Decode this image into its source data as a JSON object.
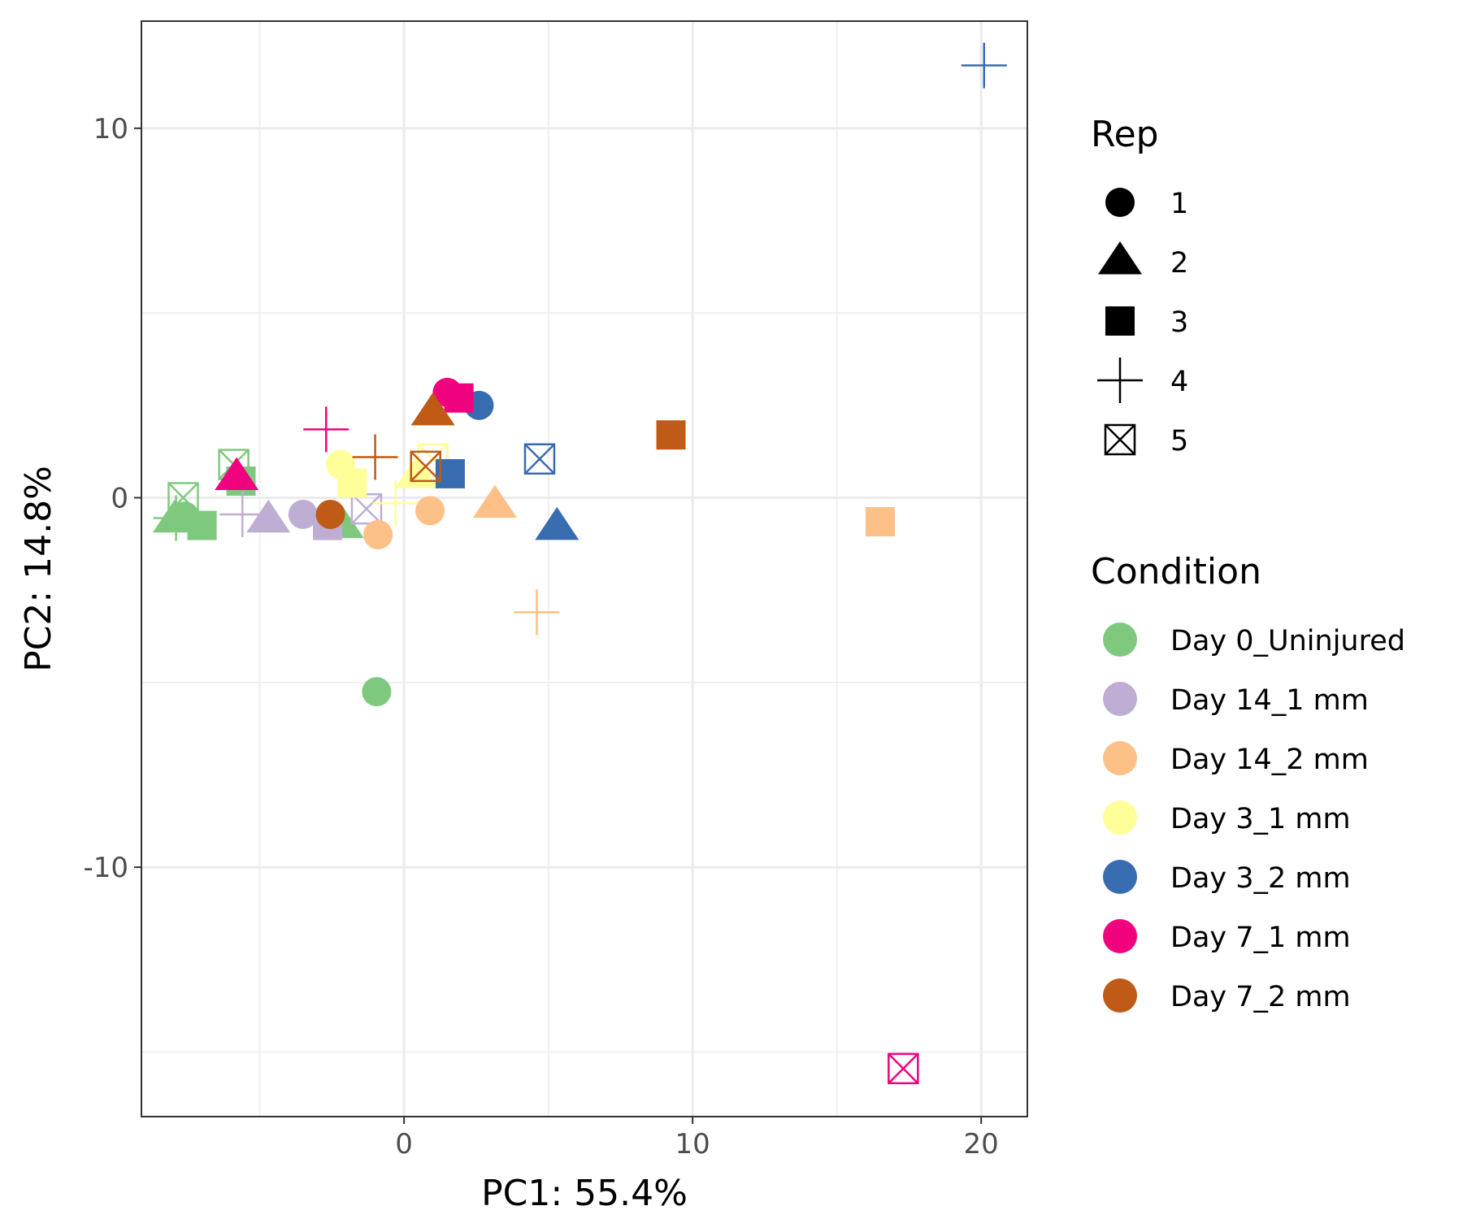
{
  "chart_data": {
    "type": "scatter",
    "title": "",
    "xlabel": "PC1: 55.4%",
    "ylabel": "PC2: 14.8%",
    "xlim": [
      -9.1,
      21.6
    ],
    "ylim": [
      -16.75,
      12.9
    ],
    "x_ticks": [
      0,
      10,
      20
    ],
    "x_tick_labels": [
      "0",
      "10",
      "20"
    ],
    "y_ticks": [
      -10,
      0,
      10
    ],
    "y_tick_labels": [
      "-10",
      "0",
      "10"
    ],
    "grid": true,
    "legend_position": "right",
    "rep_legend": {
      "title": "Rep",
      "items": [
        {
          "label": "1",
          "shape": "circle"
        },
        {
          "label": "2",
          "shape": "triangle"
        },
        {
          "label": "3",
          "shape": "square"
        },
        {
          "label": "4",
          "shape": "plus"
        },
        {
          "label": "5",
          "shape": "boxed-x"
        }
      ]
    },
    "condition_legend": {
      "title": "Condition",
      "items": [
        {
          "label": "Day 0_Uninjured",
          "color": "#7fc97f"
        },
        {
          "label": "Day 14_1 mm",
          "color": "#beaed4"
        },
        {
          "label": "Day 14_2 mm",
          "color": "#fdc086"
        },
        {
          "label": "Day 3_1 mm",
          "color": "#ffff99"
        },
        {
          "label": "Day 3_2 mm",
          "color": "#386cb0"
        },
        {
          "label": "Day 7_1 mm",
          "color": "#f0027f"
        },
        {
          "label": "Day 7_2 mm",
          "color": "#bf5b17"
        }
      ]
    },
    "points": [
      {
        "condition": "Day 0_Uninjured",
        "rep": 1,
        "x": -0.95,
        "y": -5.25
      },
      {
        "condition": "Day 0_Uninjured",
        "rep": 2,
        "x": -2.15,
        "y": -0.75
      },
      {
        "condition": "Day 0_Uninjured",
        "rep": 3,
        "x": -7.0,
        "y": -0.75
      },
      {
        "condition": "Day 0_Uninjured",
        "rep": 4,
        "x": -7.9,
        "y": -0.55
      },
      {
        "condition": "Day 0_Uninjured",
        "rep": 5,
        "x": -5.9,
        "y": 0.9
      },
      {
        "condition": "Day 0_Uninjured",
        "rep": 1,
        "x": -7.6,
        "y": -0.5
      },
      {
        "condition": "Day 0_Uninjured",
        "rep": 2,
        "x": -7.95,
        "y": -0.6
      },
      {
        "condition": "Day 0_Uninjured",
        "rep": 3,
        "x": -5.65,
        "y": 0.45
      },
      {
        "condition": "Day 0_Uninjured",
        "rep": 5,
        "x": -7.65,
        "y": 0.0
      },
      {
        "condition": "Day 14_1 mm",
        "rep": 1,
        "x": -3.5,
        "y": -0.45
      },
      {
        "condition": "Day 14_1 mm",
        "rep": 2,
        "x": -4.7,
        "y": -0.6
      },
      {
        "condition": "Day 14_1 mm",
        "rep": 3,
        "x": -2.65,
        "y": -0.75
      },
      {
        "condition": "Day 14_1 mm",
        "rep": 4,
        "x": -5.6,
        "y": -0.45
      },
      {
        "condition": "Day 14_1 mm",
        "rep": 5,
        "x": -1.3,
        "y": -0.3
      },
      {
        "condition": "Day 14_2 mm",
        "rep": 1,
        "x": -0.9,
        "y": -1.0
      },
      {
        "condition": "Day 14_2 mm",
        "rep": 1,
        "x": 0.9,
        "y": -0.35
      },
      {
        "condition": "Day 14_2 mm",
        "rep": 2,
        "x": 3.15,
        "y": -0.2
      },
      {
        "condition": "Day 14_2 mm",
        "rep": 3,
        "x": 16.5,
        "y": -0.65
      },
      {
        "condition": "Day 14_2 mm",
        "rep": 4,
        "x": 4.6,
        "y": -3.1
      },
      {
        "condition": "Day 3_1 mm",
        "rep": 1,
        "x": -2.2,
        "y": 0.9
      },
      {
        "condition": "Day 3_1 mm",
        "rep": 2,
        "x": 0.45,
        "y": 0.6
      },
      {
        "condition": "Day 3_1 mm",
        "rep": 3,
        "x": -1.8,
        "y": 0.4
      },
      {
        "condition": "Day 3_1 mm",
        "rep": 4,
        "x": -0.3,
        "y": -0.15
      },
      {
        "condition": "Day 3_1 mm",
        "rep": 5,
        "x": 1.0,
        "y": 1.05
      },
      {
        "condition": "Day 3_2 mm",
        "rep": 1,
        "x": 2.6,
        "y": 2.5
      },
      {
        "condition": "Day 3_2 mm",
        "rep": 2,
        "x": 5.3,
        "y": -0.8
      },
      {
        "condition": "Day 3_2 mm",
        "rep": 3,
        "x": 1.6,
        "y": 0.65
      },
      {
        "condition": "Day 3_2 mm",
        "rep": 4,
        "x": 20.1,
        "y": 11.7
      },
      {
        "condition": "Day 3_2 mm",
        "rep": 5,
        "x": 4.7,
        "y": 1.05
      },
      {
        "condition": "Day 7_1 mm",
        "rep": 1,
        "x": 1.5,
        "y": 2.85
      },
      {
        "condition": "Day 7_1 mm",
        "rep": 2,
        "x": -5.8,
        "y": 0.55
      },
      {
        "condition": "Day 7_1 mm",
        "rep": 3,
        "x": 1.9,
        "y": 2.7
      },
      {
        "condition": "Day 7_1 mm",
        "rep": 4,
        "x": -2.7,
        "y": 1.85
      },
      {
        "condition": "Day 7_1 mm",
        "rep": 5,
        "x": 17.3,
        "y": -15.45
      },
      {
        "condition": "Day 7_2 mm",
        "rep": 1,
        "x": -2.55,
        "y": -0.45
      },
      {
        "condition": "Day 7_2 mm",
        "rep": 2,
        "x": 1.0,
        "y": 2.3
      },
      {
        "condition": "Day 7_2 mm",
        "rep": 3,
        "x": 9.25,
        "y": 1.7
      },
      {
        "condition": "Day 7_2 mm",
        "rep": 4,
        "x": -1.0,
        "y": 1.1
      },
      {
        "condition": "Day 7_2 mm",
        "rep": 5,
        "x": 0.75,
        "y": 0.85
      }
    ]
  }
}
